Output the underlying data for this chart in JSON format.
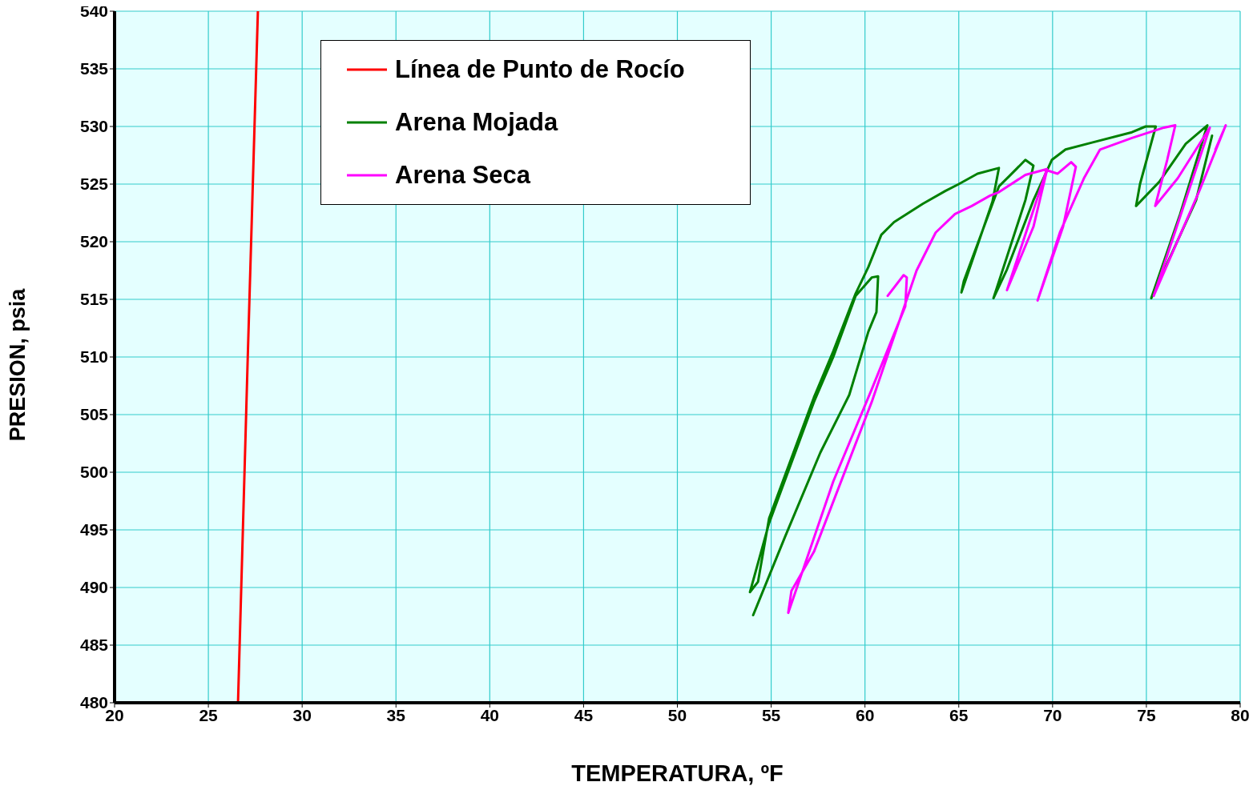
{
  "chart_data": {
    "type": "line",
    "xlabel": "TEMPERATURA, ºF",
    "ylabel": "PRESION, psia",
    "xlim": [
      20,
      80
    ],
    "xticks": [
      20,
      25,
      30,
      35,
      40,
      45,
      50,
      55,
      60,
      65,
      70,
      75,
      80
    ],
    "ylim": [
      480,
      540
    ],
    "yticks": [
      480,
      485,
      490,
      495,
      500,
      505,
      510,
      515,
      520,
      525,
      530,
      535,
      540
    ],
    "grid": true,
    "legend": "top",
    "marker": "none",
    "series": [
      {
        "name": "Línea de Punto de Rocío",
        "color": "#ff0000",
        "x": [
          26.58,
          27.1,
          27.64
        ],
        "values": [
          480,
          510,
          540
        ]
      },
      {
        "name": "Arena Mojada",
        "color": "#008000",
        "x": [
          54.04,
          55.74,
          57.62,
          59.16,
          60.18,
          60.61,
          60.7,
          60.36,
          59.5,
          58.31,
          57.28,
          54.89,
          53.87,
          54.3,
          54.89,
          57.28,
          58.31,
          59.5,
          60.18,
          60.87,
          61.55,
          63.09,
          64.28,
          65.0,
          66.0,
          67.14,
          66.8,
          65.14,
          65.27,
          67.14,
          67.7,
          68.55,
          68.98,
          68.55,
          66.85,
          67.57,
          68.98,
          69.96,
          70.69,
          72.1,
          74.23,
          74.96,
          75.5,
          74.66,
          74.45,
          75.69,
          77.1,
          78.25,
          76.8,
          75.26,
          77.65,
          78.5
        ],
        "values": [
          487.6,
          494.4,
          501.7,
          506.7,
          512.2,
          513.9,
          517,
          516.9,
          515.3,
          510,
          506.1,
          495.6,
          489.6,
          490.5,
          496,
          506.5,
          510.5,
          515.5,
          517.8,
          520.6,
          521.7,
          523.3,
          524.4,
          525,
          525.9,
          526.4,
          523.5,
          515.6,
          516.6,
          524.8,
          525.7,
          527.1,
          526.6,
          523.6,
          515.1,
          517.6,
          523.6,
          527.1,
          528,
          528.6,
          529.5,
          530,
          530,
          525,
          523.1,
          525.2,
          528.5,
          530.1,
          522.4,
          515.1,
          523.6,
          529.2
        ]
      },
      {
        "name": "Arena Seca",
        "color": "#ff00ff",
        "x": [
          61.21,
          62.06,
          62.23,
          62.15,
          60.36,
          58.31,
          55.91,
          56.08,
          57.28,
          60.36,
          62.75,
          63.77,
          64.8,
          65.69,
          66.67,
          67.14,
          68.55,
          69.7,
          67.57,
          68.98,
          69.7,
          70.26,
          70.99,
          71.24,
          70.56,
          69.2,
          70.39,
          71.67,
          72.53,
          74.23,
          75.94,
          76.54,
          76.11,
          75.47,
          76.67,
          78.38,
          75.39,
          77.82,
          79.23,
          78.68
        ],
        "values": [
          515.3,
          517.1,
          516.9,
          514.4,
          507.2,
          499.2,
          487.8,
          489.7,
          493.1,
          506.1,
          517.5,
          520.8,
          522.4,
          523.1,
          524,
          524.3,
          525.8,
          526.3,
          515.8,
          521.3,
          526.2,
          525.9,
          526.9,
          526.5,
          521.3,
          514.9,
          520.8,
          525.5,
          528,
          529,
          529.9,
          530.1,
          527.1,
          523.1,
          525.5,
          529.9,
          515.3,
          524.4,
          530.1,
          528
        ]
      }
    ]
  }
}
